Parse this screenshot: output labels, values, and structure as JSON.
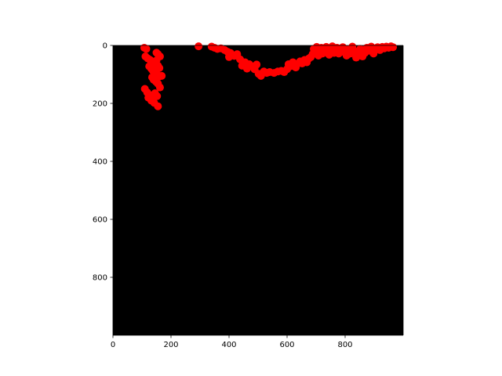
{
  "chart_data": {
    "type": "scatter",
    "title": "",
    "xlabel": "",
    "ylabel": "",
    "xlim": [
      0,
      1000
    ],
    "ylim": [
      1000,
      0
    ],
    "y_inverted": true,
    "grid": false,
    "background": "#000000",
    "marker_color": "#ff0000",
    "xticks": [
      0,
      200,
      400,
      600,
      800
    ],
    "yticks": [
      0,
      200,
      400,
      600,
      800
    ],
    "xtick_labels": [
      "0",
      "200",
      "400",
      "600",
      "800"
    ],
    "ytick_labels": [
      "0",
      "200",
      "400",
      "600",
      "800"
    ],
    "points": [
      {
        "x": 108,
        "y": 8
      },
      {
        "x": 115,
        "y": 12
      },
      {
        "x": 150,
        "y": 25
      },
      {
        "x": 155,
        "y": 30
      },
      {
        "x": 162,
        "y": 38
      },
      {
        "x": 112,
        "y": 38
      },
      {
        "x": 120,
        "y": 45
      },
      {
        "x": 128,
        "y": 50
      },
      {
        "x": 135,
        "y": 55
      },
      {
        "x": 140,
        "y": 60
      },
      {
        "x": 145,
        "y": 65
      },
      {
        "x": 150,
        "y": 52
      },
      {
        "x": 155,
        "y": 70
      },
      {
        "x": 160,
        "y": 78
      },
      {
        "x": 125,
        "y": 72
      },
      {
        "x": 132,
        "y": 80
      },
      {
        "x": 138,
        "y": 88
      },
      {
        "x": 145,
        "y": 95
      },
      {
        "x": 152,
        "y": 100
      },
      {
        "x": 158,
        "y": 108
      },
      {
        "x": 168,
        "y": 105
      },
      {
        "x": 135,
        "y": 110
      },
      {
        "x": 140,
        "y": 118
      },
      {
        "x": 148,
        "y": 125
      },
      {
        "x": 155,
        "y": 132
      },
      {
        "x": 162,
        "y": 145
      },
      {
        "x": 110,
        "y": 150
      },
      {
        "x": 118,
        "y": 162
      },
      {
        "x": 128,
        "y": 172
      },
      {
        "x": 138,
        "y": 180
      },
      {
        "x": 145,
        "y": 165
      },
      {
        "x": 152,
        "y": 175
      },
      {
        "x": 132,
        "y": 190
      },
      {
        "x": 142,
        "y": 198
      },
      {
        "x": 155,
        "y": 210
      },
      {
        "x": 122,
        "y": 180
      },
      {
        "x": 295,
        "y": 3
      },
      {
        "x": 340,
        "y": 4
      },
      {
        "x": 350,
        "y": 8
      },
      {
        "x": 360,
        "y": 12
      },
      {
        "x": 372,
        "y": 10
      },
      {
        "x": 385,
        "y": 16
      },
      {
        "x": 395,
        "y": 22
      },
      {
        "x": 405,
        "y": 26
      },
      {
        "x": 418,
        "y": 36
      },
      {
        "x": 428,
        "y": 30
      },
      {
        "x": 400,
        "y": 40
      },
      {
        "x": 438,
        "y": 48
      },
      {
        "x": 445,
        "y": 70
      },
      {
        "x": 455,
        "y": 58
      },
      {
        "x": 462,
        "y": 80
      },
      {
        "x": 470,
        "y": 65
      },
      {
        "x": 478,
        "y": 72
      },
      {
        "x": 488,
        "y": 82
      },
      {
        "x": 495,
        "y": 66
      },
      {
        "x": 502,
        "y": 98
      },
      {
        "x": 510,
        "y": 105
      },
      {
        "x": 520,
        "y": 90
      },
      {
        "x": 530,
        "y": 95
      },
      {
        "x": 540,
        "y": 92
      },
      {
        "x": 555,
        "y": 95
      },
      {
        "x": 568,
        "y": 90
      },
      {
        "x": 580,
        "y": 88
      },
      {
        "x": 590,
        "y": 92
      },
      {
        "x": 600,
        "y": 82
      },
      {
        "x": 605,
        "y": 65
      },
      {
        "x": 612,
        "y": 72
      },
      {
        "x": 620,
        "y": 58
      },
      {
        "x": 630,
        "y": 76
      },
      {
        "x": 638,
        "y": 62
      },
      {
        "x": 645,
        "y": 55
      },
      {
        "x": 652,
        "y": 62
      },
      {
        "x": 660,
        "y": 50
      },
      {
        "x": 668,
        "y": 58
      },
      {
        "x": 675,
        "y": 45
      },
      {
        "x": 682,
        "y": 40
      },
      {
        "x": 688,
        "y": 30
      },
      {
        "x": 692,
        "y": 12
      },
      {
        "x": 698,
        "y": 22
      },
      {
        "x": 702,
        "y": 5
      },
      {
        "x": 708,
        "y": 35
      },
      {
        "x": 712,
        "y": 18
      },
      {
        "x": 718,
        "y": 8
      },
      {
        "x": 722,
        "y": 28
      },
      {
        "x": 728,
        "y": 12
      },
      {
        "x": 735,
        "y": 5
      },
      {
        "x": 740,
        "y": 22
      },
      {
        "x": 745,
        "y": 32
      },
      {
        "x": 750,
        "y": 14
      },
      {
        "x": 756,
        "y": 3
      },
      {
        "x": 762,
        "y": 26
      },
      {
        "x": 768,
        "y": 18
      },
      {
        "x": 772,
        "y": 8
      },
      {
        "x": 778,
        "y": 28
      },
      {
        "x": 785,
        "y": 15
      },
      {
        "x": 792,
        "y": 6
      },
      {
        "x": 798,
        "y": 24
      },
      {
        "x": 805,
        "y": 35
      },
      {
        "x": 812,
        "y": 14
      },
      {
        "x": 818,
        "y": 28
      },
      {
        "x": 825,
        "y": 4
      },
      {
        "x": 832,
        "y": 20
      },
      {
        "x": 838,
        "y": 42
      },
      {
        "x": 845,
        "y": 30
      },
      {
        "x": 852,
        "y": 12
      },
      {
        "x": 860,
        "y": 38
      },
      {
        "x": 868,
        "y": 26
      },
      {
        "x": 875,
        "y": 8
      },
      {
        "x": 882,
        "y": 18
      },
      {
        "x": 890,
        "y": 4
      },
      {
        "x": 898,
        "y": 28
      },
      {
        "x": 905,
        "y": 12
      },
      {
        "x": 912,
        "y": 6
      },
      {
        "x": 920,
        "y": 16
      },
      {
        "x": 928,
        "y": 5
      },
      {
        "x": 935,
        "y": 10
      },
      {
        "x": 942,
        "y": 4
      },
      {
        "x": 950,
        "y": 8
      },
      {
        "x": 958,
        "y": 3
      },
      {
        "x": 965,
        "y": 6
      }
    ]
  }
}
